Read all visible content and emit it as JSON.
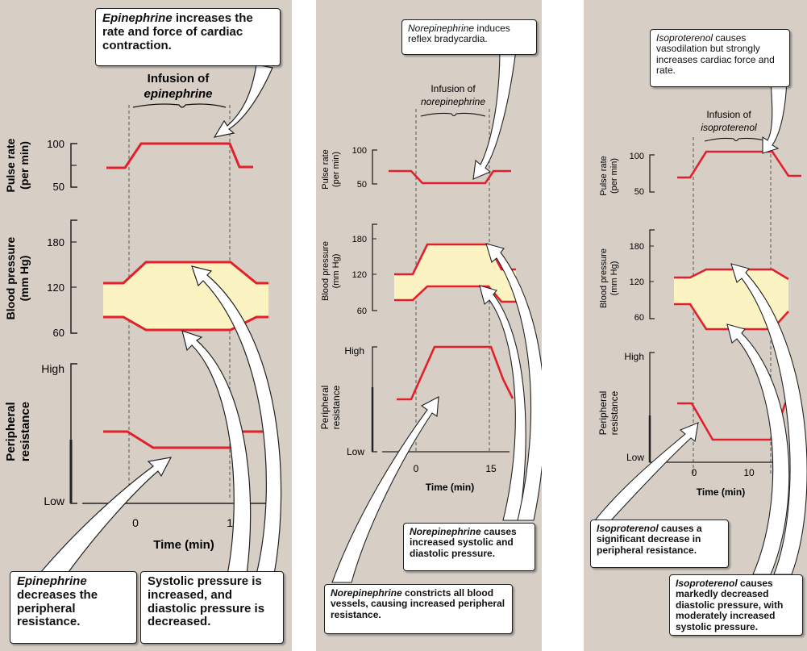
{
  "panels": {
    "epinephrine": {
      "top_callout": {
        "drug": "Epinephrine",
        "text": " increases the rate and force of cardiac contraction."
      },
      "infusion_label": "Infusion of",
      "infusion_drug": "epinephrine",
      "pulse": {
        "axis_label_1": "Pulse rate",
        "axis_label_2": "(per min)",
        "ticks": [
          "100",
          "50"
        ]
      },
      "bp": {
        "axis_label_1": "Blood pressure",
        "axis_label_2": "(mm Hg)",
        "ticks": [
          "180",
          "120",
          "60"
        ]
      },
      "resistance": {
        "axis_label_1": "Peripheral",
        "axis_label_2": "resistance",
        "high": "High",
        "low": "Low"
      },
      "time": {
        "ticks": [
          "0",
          "15"
        ],
        "label": "Time (min)"
      },
      "bottom_left_callout": {
        "drug": "Epinephrine",
        "text": " decreases the peripheral resistance."
      },
      "bottom_right_callout": {
        "text": "Systolic pressure is increased, and diastolic pressure is decreased."
      }
    },
    "norepinephrine": {
      "top_callout": {
        "drug": "Norepinephrine",
        "text": " induces reflex bradycardia."
      },
      "infusion_label": "Infusion of",
      "infusion_drug": "norepinephrine",
      "pulse": {
        "axis_label_1": "Pulse rate",
        "axis_label_2": "(per min)",
        "ticks": [
          "100",
          "50"
        ]
      },
      "bp": {
        "axis_label_1": "Blood pressure",
        "axis_label_2": "(mm Hg)",
        "ticks": [
          "180",
          "120",
          "60"
        ]
      },
      "resistance": {
        "axis_label_1": "Peripheral",
        "axis_label_2": "resistance",
        "high": "High",
        "low": "Low"
      },
      "time": {
        "ticks": [
          "0",
          "15"
        ],
        "label": "Time (min)"
      },
      "middle_callout": {
        "drug": "Norepinephrine",
        "text": " causes increased systolic and diastolic pressure."
      },
      "bottom_callout": {
        "drug": "Norepinephrine",
        "text": " constricts all blood vessels, causing increased peripheral resistance."
      }
    },
    "isoproterenol": {
      "top_callout": {
        "drug": "Isoproterenol",
        "text": " causes vasodilation but strongly increases cardiac force and rate."
      },
      "infusion_label": "Infusion of",
      "infusion_drug": "isoproterenol",
      "pulse": {
        "axis_label_1": "Pulse rate",
        "axis_label_2": "(per min)",
        "ticks": [
          "100",
          "50"
        ]
      },
      "bp": {
        "axis_label_1": "Blood pressure",
        "axis_label_2": "(mm Hg)",
        "ticks": [
          "180",
          "120",
          "60"
        ]
      },
      "resistance": {
        "axis_label_1": "Peripheral",
        "axis_label_2": "resistance",
        "high": "High",
        "low": "Low"
      },
      "time": {
        "ticks": [
          "0",
          "10"
        ],
        "label": "Time (min)"
      },
      "middle_callout": {
        "drug": "Isoproterenol",
        "text": " causes a significant decrease in peripheral resistance."
      },
      "bottom_callout": {
        "drug": "Isoproterenol",
        "text": " causes markedly decreased diastolic pressure, with moderately increased systolic pressure."
      }
    }
  },
  "colors": {
    "trace": "#e2202b",
    "band": "#fbf4c2",
    "panel_bg": "#d7cfc6",
    "axis": "#222222"
  }
}
